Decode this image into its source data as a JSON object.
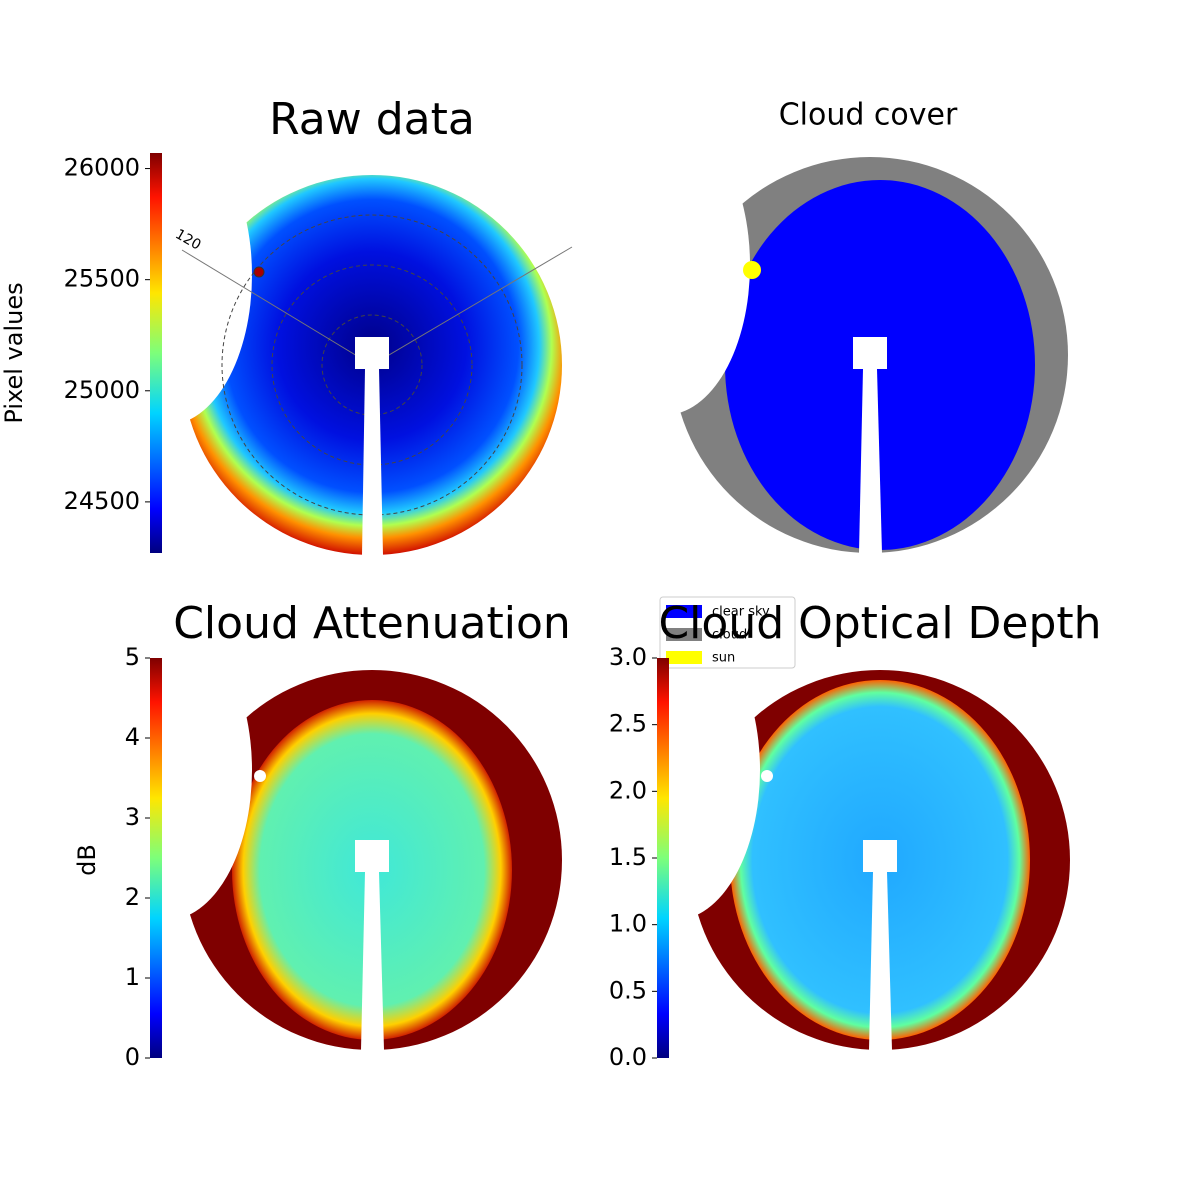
{
  "chart_data": [
    {
      "type": "image",
      "title": "Raw data",
      "colorbar_label": "Pixel values",
      "ylim": [
        24270,
        26070
      ],
      "yticks": [
        24500,
        25000,
        25500,
        26000
      ],
      "annotation": "120"
    },
    {
      "type": "image",
      "title": "Cloud cover",
      "legend": [
        {
          "name": "clear sky",
          "color": "#0000ff"
        },
        {
          "name": "cloud",
          "color": "#808080"
        },
        {
          "name": "sun",
          "color": "#ffff00"
        }
      ]
    },
    {
      "type": "image",
      "title": "Cloud Attenuation",
      "colorbar_label": "dB",
      "ylim": [
        0,
        5
      ],
      "yticks": [
        0,
        1,
        2,
        3,
        4,
        5
      ]
    },
    {
      "type": "image",
      "title": "Cloud Optical Depth",
      "ylim": [
        0,
        3
      ],
      "yticks": [
        {
          "value": 0,
          "label": "0.0"
        },
        {
          "value": 0.5,
          "label": "0.5"
        },
        {
          "value": 1,
          "label": "1.0"
        },
        {
          "value": 1.5,
          "label": "1.5"
        },
        {
          "value": 2,
          "label": "2.0"
        },
        {
          "value": 2.5,
          "label": "2.5"
        },
        {
          "value": 3,
          "label": "3.0"
        }
      ]
    }
  ]
}
